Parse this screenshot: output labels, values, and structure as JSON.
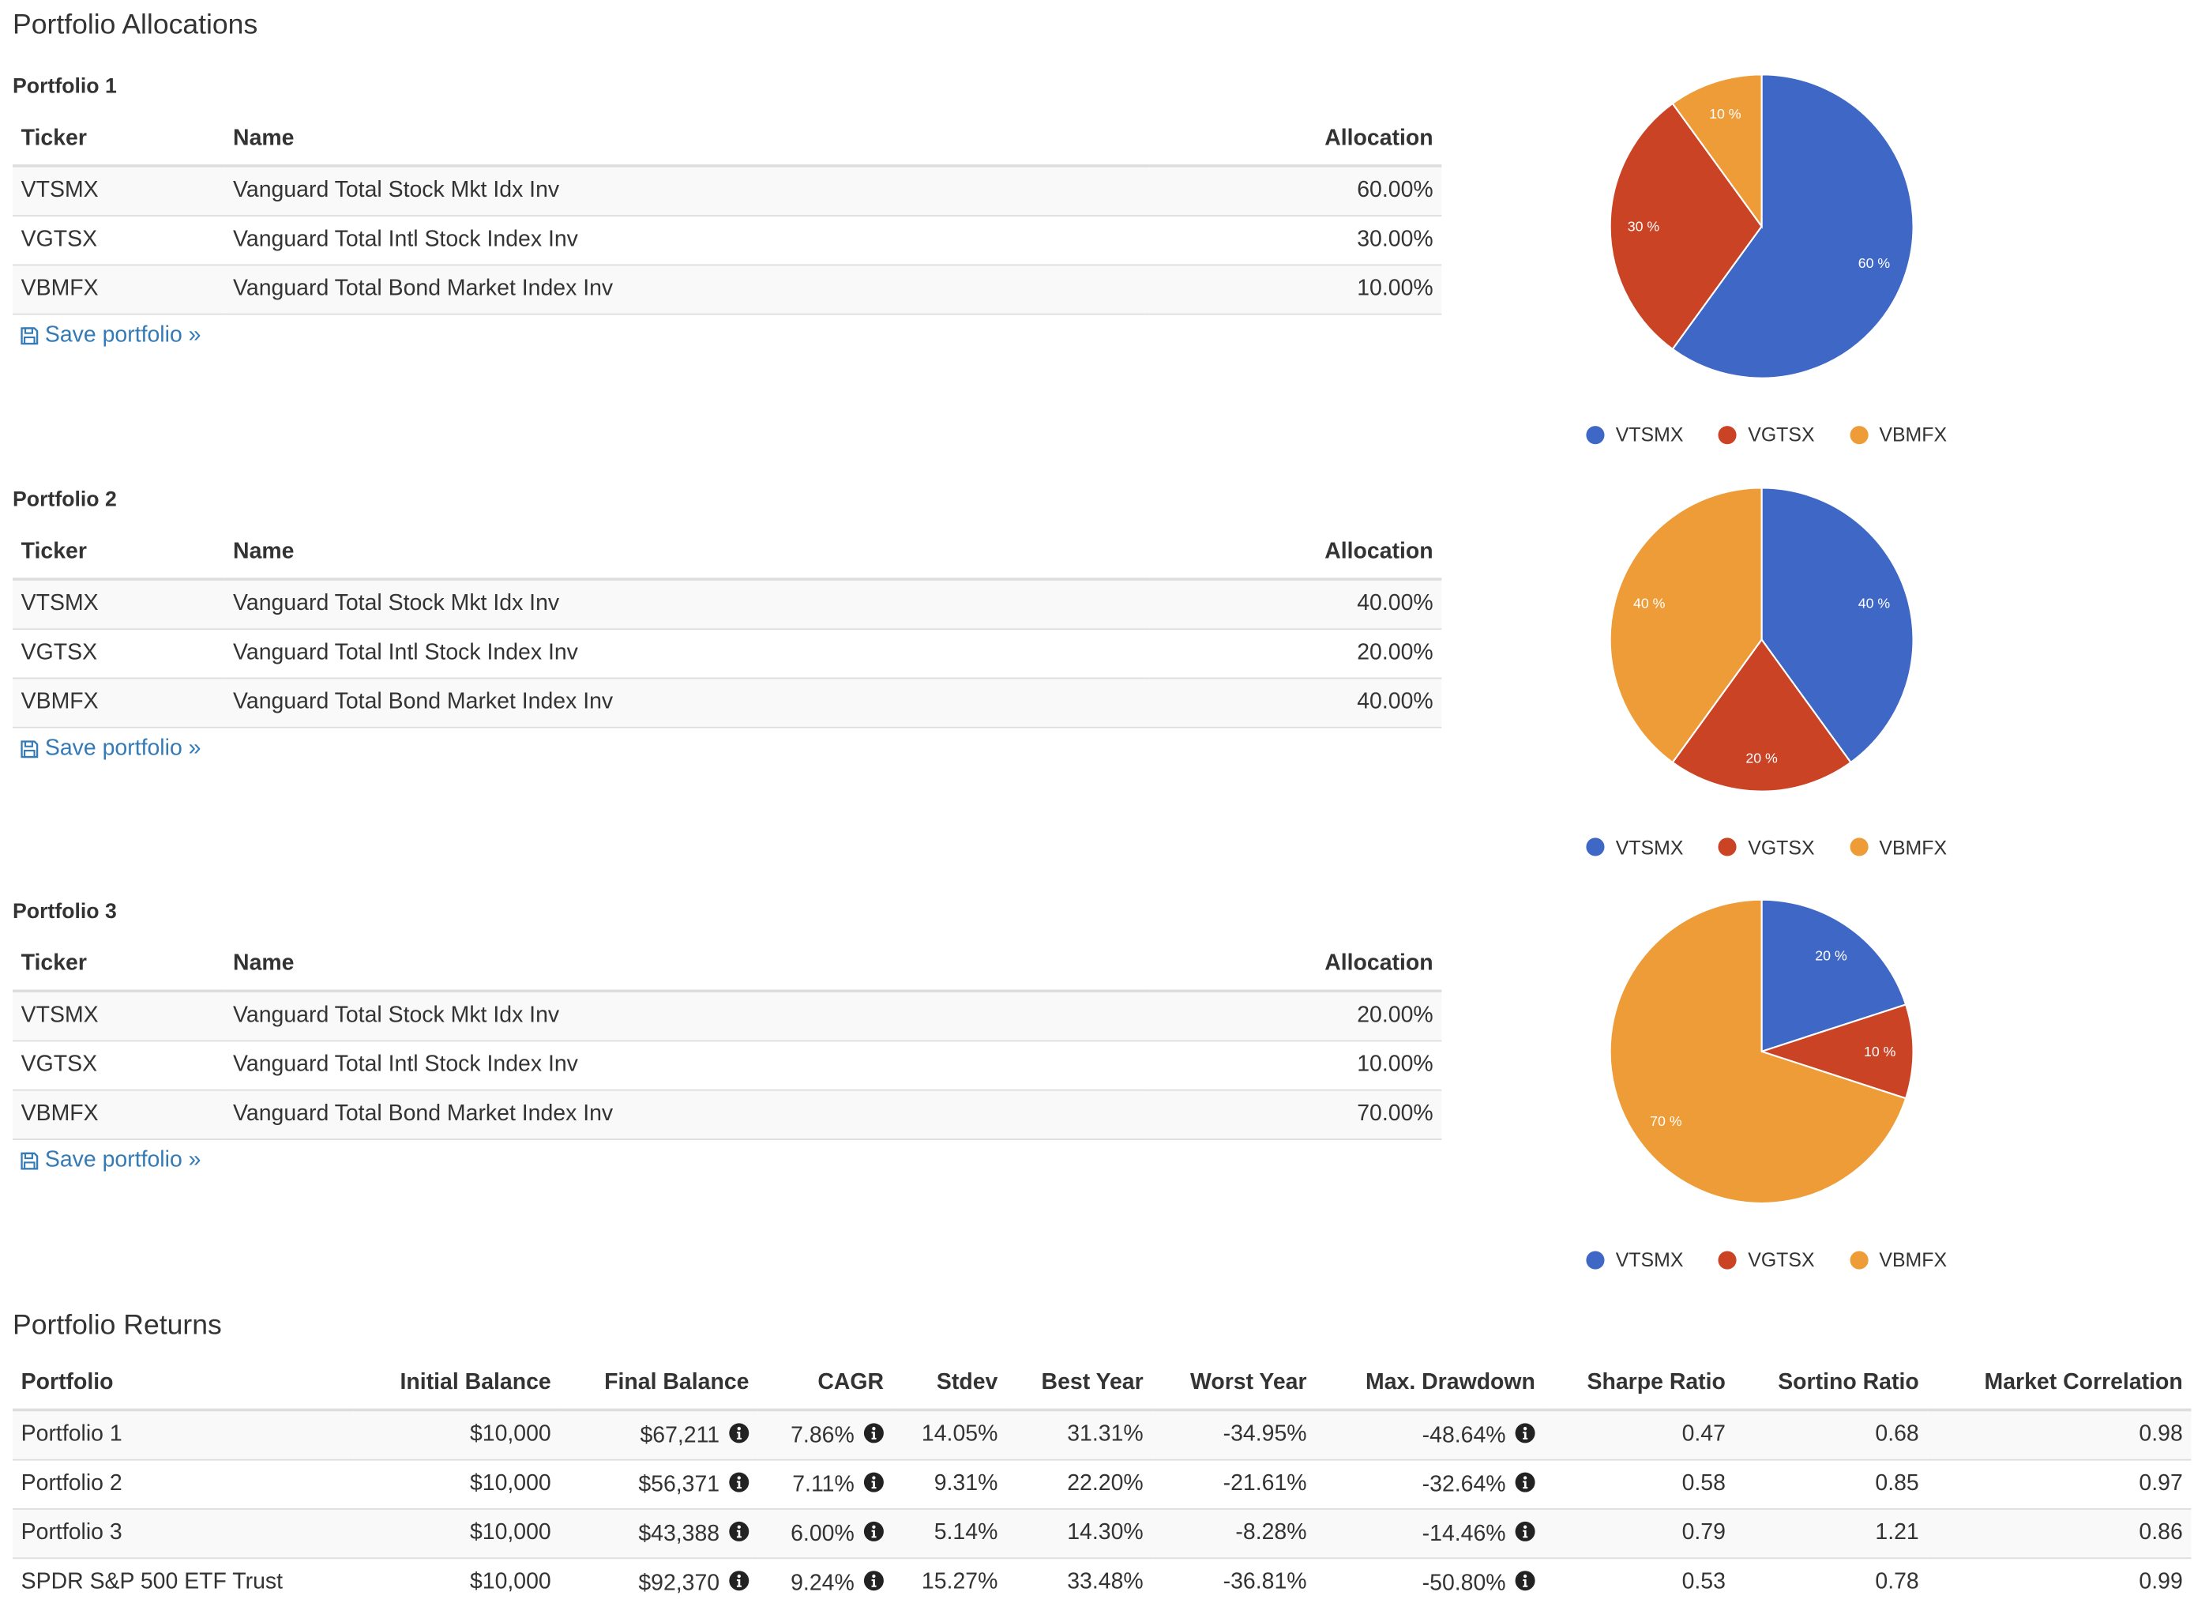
{
  "allocations_title": "Portfolio Allocations",
  "returns_title": "Portfolio Returns",
  "columns": {
    "ticker": "Ticker",
    "name": "Name",
    "allocation": "Allocation"
  },
  "save_label": "Save portfolio »",
  "portfolios": [
    {
      "title": "Portfolio 1",
      "rows": [
        {
          "ticker": "VTSMX",
          "name": "Vanguard Total Stock Mkt Idx Inv",
          "allocation": "60.00%"
        },
        {
          "ticker": "VGTSX",
          "name": "Vanguard Total Intl Stock Index Inv",
          "allocation": "30.00%"
        },
        {
          "ticker": "VBMFX",
          "name": "Vanguard Total Bond Market Index Inv",
          "allocation": "10.00%"
        }
      ]
    },
    {
      "title": "Portfolio 2",
      "rows": [
        {
          "ticker": "VTSMX",
          "name": "Vanguard Total Stock Mkt Idx Inv",
          "allocation": "40.00%"
        },
        {
          "ticker": "VGTSX",
          "name": "Vanguard Total Intl Stock Index Inv",
          "allocation": "20.00%"
        },
        {
          "ticker": "VBMFX",
          "name": "Vanguard Total Bond Market Index Inv",
          "allocation": "40.00%"
        }
      ]
    },
    {
      "title": "Portfolio 3",
      "rows": [
        {
          "ticker": "VTSMX",
          "name": "Vanguard Total Stock Mkt Idx Inv",
          "allocation": "20.00%"
        },
        {
          "ticker": "VGTSX",
          "name": "Vanguard Total Intl Stock Index Inv",
          "allocation": "10.00%"
        },
        {
          "ticker": "VBMFX",
          "name": "Vanguard Total Bond Market Index Inv",
          "allocation": "70.00%"
        }
      ]
    }
  ],
  "colors": {
    "VTSMX": "#3f67c6",
    "VGTSX": "#cb4325",
    "VBMFX": "#ee9c37",
    "link": "#337ab7"
  },
  "icons": {
    "save": "floppy-disk-icon",
    "info": "info-circle-icon"
  },
  "chart_data": [
    {
      "type": "pie",
      "categories": [
        "VTSMX",
        "VGTSX",
        "VBMFX"
      ],
      "values": [
        60,
        30,
        10
      ],
      "labels": [
        "60 %",
        "30 %",
        "10 %"
      ],
      "legend": {
        "position": "bottom",
        "entries": [
          "VTSMX",
          "VGTSX",
          "VBMFX"
        ]
      }
    },
    {
      "type": "pie",
      "categories": [
        "VTSMX",
        "VGTSX",
        "VBMFX"
      ],
      "values": [
        40,
        20,
        40
      ],
      "labels": [
        "40 %",
        "20 %",
        "40 %"
      ],
      "legend": {
        "position": "bottom",
        "entries": [
          "VTSMX",
          "VGTSX",
          "VBMFX"
        ]
      }
    },
    {
      "type": "pie",
      "categories": [
        "VTSMX",
        "VGTSX",
        "VBMFX"
      ],
      "values": [
        20,
        10,
        70
      ],
      "labels": [
        "20 %",
        "10 %",
        "70 %"
      ],
      "legend": {
        "position": "bottom",
        "entries": [
          "VTSMX",
          "VGTSX",
          "VBMFX"
        ]
      }
    }
  ],
  "returns": {
    "headers": [
      "Portfolio",
      "Initial Balance",
      "Final Balance",
      "CAGR",
      "Stdev",
      "Best Year",
      "Worst Year",
      "Max. Drawdown",
      "Sharpe Ratio",
      "Sortino Ratio",
      "Market Correlation"
    ],
    "rows": [
      [
        "Portfolio 1",
        "$10,000",
        "$67,211",
        "7.86%",
        "14.05%",
        "31.31%",
        "-34.95%",
        "-48.64%",
        "0.47",
        "0.68",
        "0.98"
      ],
      [
        "Portfolio 2",
        "$10,000",
        "$56,371",
        "7.11%",
        "9.31%",
        "22.20%",
        "-21.61%",
        "-32.64%",
        "0.58",
        "0.85",
        "0.97"
      ],
      [
        "Portfolio 3",
        "$10,000",
        "$43,388",
        "6.00%",
        "5.14%",
        "14.30%",
        "-8.28%",
        "-14.46%",
        "0.79",
        "1.21",
        "0.86"
      ],
      [
        "SPDR S&P 500 ETF Trust",
        "$10,000",
        "$92,370",
        "9.24%",
        "15.27%",
        "33.48%",
        "-36.81%",
        "-50.80%",
        "0.53",
        "0.78",
        "0.99"
      ]
    ]
  }
}
